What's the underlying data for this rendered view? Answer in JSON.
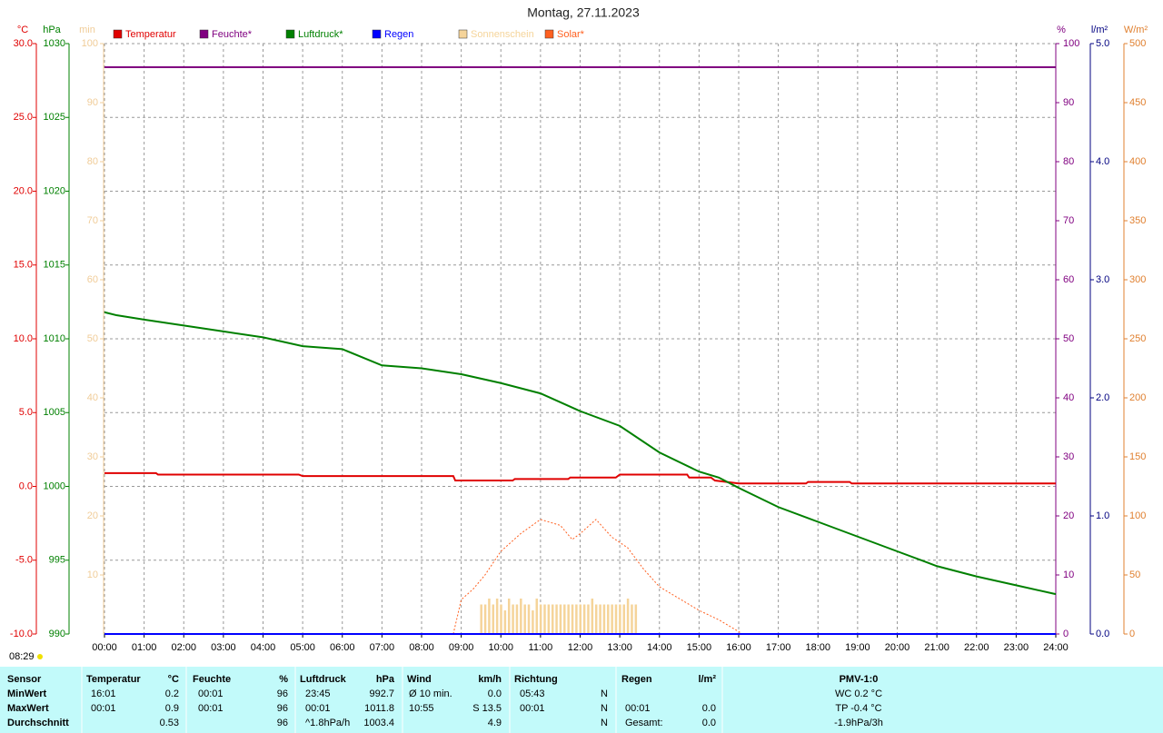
{
  "chart_data": {
    "type": "line",
    "title": "Montag, 27.11.2023",
    "xlim": [
      0,
      24
    ],
    "xticks": [
      {
        "value": 0,
        "label": "00:00"
      },
      {
        "value": 1,
        "label": "01:00"
      },
      {
        "value": 2,
        "label": "02:00"
      },
      {
        "value": 3,
        "label": "03:00"
      },
      {
        "value": 4,
        "label": "04:00"
      },
      {
        "value": 5,
        "label": "05:00"
      },
      {
        "value": 6,
        "label": "06:00"
      },
      {
        "value": 7,
        "label": "07:00"
      },
      {
        "value": 8,
        "label": "08:00"
      },
      {
        "value": 9,
        "label": "09:00"
      },
      {
        "value": 10,
        "label": "10:00"
      },
      {
        "value": 11,
        "label": "11:00"
      },
      {
        "value": 12,
        "label": "12:00"
      },
      {
        "value": 13,
        "label": "13:00"
      },
      {
        "value": 14,
        "label": "14:00"
      },
      {
        "value": 15,
        "label": "15:00"
      },
      {
        "value": 16,
        "label": "16:00"
      },
      {
        "value": 17,
        "label": "17:00"
      },
      {
        "value": 18,
        "label": "18:00"
      },
      {
        "value": 19,
        "label": "19:00"
      },
      {
        "value": 20,
        "label": "20:00"
      },
      {
        "value": 21,
        "label": "21:00"
      },
      {
        "value": 22,
        "label": "22:00"
      },
      {
        "value": 23,
        "label": "23:00"
      },
      {
        "value": 24,
        "label": "24:00"
      }
    ],
    "grid": true,
    "y_axes": {
      "y": {
        "unit": "°C",
        "side": "left",
        "color": "#e00000",
        "lim": [
          -10,
          30
        ],
        "ticks": [
          {
            "value": -10,
            "label": "-10.0"
          },
          {
            "value": -5,
            "label": "-5.0"
          },
          {
            "value": 0,
            "label": "0.0"
          },
          {
            "value": 5,
            "label": "5.0"
          },
          {
            "value": 10,
            "label": "10.0"
          },
          {
            "value": 15,
            "label": "15.0"
          },
          {
            "value": 20,
            "label": "20.0"
          },
          {
            "value": 25,
            "label": "25.0"
          },
          {
            "value": 30,
            "label": "30.0"
          }
        ]
      },
      "y2": {
        "unit": "hPa",
        "side": "left",
        "color": "#008000",
        "lim": [
          990,
          1030
        ],
        "ticks": [
          990,
          995,
          1000,
          1005,
          1010,
          1015,
          1020,
          1025,
          1030
        ]
      },
      "y3": {
        "unit": "min",
        "side": "left",
        "color": "#f0cc98",
        "lim": [
          0,
          100
        ],
        "ticks": [
          10,
          20,
          30,
          40,
          50,
          60,
          70,
          80,
          90,
          100
        ]
      },
      "y4": {
        "unit": "%",
        "side": "right",
        "color": "#800080",
        "lim": [
          0,
          100
        ],
        "ticks": [
          0,
          10,
          20,
          30,
          40,
          50,
          60,
          70,
          80,
          90,
          100
        ]
      },
      "y5": {
        "unit": "l/m²",
        "side": "right",
        "color": "#000080",
        "lim": [
          0,
          5
        ],
        "ticks": [
          {
            "value": 0,
            "label": "0.0"
          },
          {
            "value": 1,
            "label": "1.0"
          },
          {
            "value": 2,
            "label": "2.0"
          },
          {
            "value": 3,
            "label": "3.0"
          },
          {
            "value": 4,
            "label": "4.0"
          },
          {
            "value": 5,
            "label": "5.0"
          }
        ]
      },
      "y6": {
        "unit": "W/m²",
        "side": "right",
        "color": "#e08030",
        "lim": [
          0,
          500
        ],
        "ticks": [
          0,
          50,
          100,
          150,
          200,
          250,
          300,
          350,
          400,
          450,
          500
        ]
      }
    },
    "series": [
      {
        "name": "Temperatur",
        "color": "#e00000",
        "axis": "y",
        "type": "line",
        "x": [
          0,
          1.3,
          1.35,
          4.9,
          5.0,
          8.8,
          8.85,
          10.3,
          10.35,
          11.7,
          11.75,
          12.9,
          13.0,
          14.7,
          14.75,
          15.3,
          15.4,
          16.0,
          17.7,
          17.75,
          18.8,
          18.85,
          24
        ],
        "values": [
          0.9,
          0.9,
          0.8,
          0.8,
          0.7,
          0.7,
          0.4,
          0.4,
          0.5,
          0.5,
          0.6,
          0.6,
          0.8,
          0.8,
          0.6,
          0.6,
          0.4,
          0.2,
          0.2,
          0.3,
          0.3,
          0.2,
          0.2
        ]
      },
      {
        "name": "Feuchte*",
        "color": "#800080",
        "axis": "y4",
        "type": "line",
        "x": [
          0,
          24
        ],
        "values": [
          96,
          96
        ]
      },
      {
        "name": "Luftdruck*",
        "color": "#008000",
        "axis": "y2",
        "type": "line",
        "x": [
          0,
          0.3,
          1,
          2,
          3,
          4,
          5,
          6,
          7,
          8,
          9,
          10,
          11,
          12,
          13,
          14,
          15,
          15.5,
          16,
          17,
          18,
          19,
          20,
          21,
          22,
          23,
          24
        ],
        "values": [
          1011.8,
          1011.6,
          1011.3,
          1010.9,
          1010.5,
          1010.1,
          1009.5,
          1009.3,
          1008.2,
          1008.0,
          1007.6,
          1007.0,
          1006.3,
          1005.1,
          1004.1,
          1002.3,
          1001.0,
          1000.6,
          999.9,
          998.6,
          997.6,
          996.6,
          995.6,
          994.6,
          993.9,
          993.3,
          992.7
        ]
      },
      {
        "name": "Regen",
        "color": "#0000ff",
        "axis": "y5",
        "type": "line",
        "x": [
          0,
          24
        ],
        "values": [
          0,
          0
        ]
      },
      {
        "name": "Sonnenschein",
        "color": "#f5d49a",
        "axis": "y3",
        "type": "bar",
        "x": [
          9.5,
          9.6,
          9.7,
          9.8,
          9.9,
          10.0,
          10.1,
          10.2,
          10.3,
          10.4,
          10.5,
          10.6,
          10.7,
          10.8,
          10.9,
          11.0,
          11.1,
          11.2,
          11.3,
          11.4,
          11.5,
          11.6,
          11.7,
          11.8,
          11.9,
          12.0,
          12.1,
          12.2,
          12.3,
          12.4,
          12.5,
          12.6,
          12.7,
          12.8,
          12.9,
          13.0,
          13.1,
          13.2,
          13.3,
          13.4
        ],
        "values": [
          5,
          5,
          6,
          5,
          6,
          5,
          4,
          6,
          5,
          5,
          6,
          5,
          5,
          4,
          6,
          5,
          5,
          5,
          5,
          5,
          5,
          5,
          5,
          5,
          5,
          5,
          5,
          5,
          6,
          5,
          5,
          5,
          5,
          5,
          5,
          5,
          5,
          6,
          5,
          5
        ]
      },
      {
        "name": "Solar*",
        "color": "#ff6020",
        "axis": "y6",
        "type": "line",
        "line_style": "dotted",
        "x": [
          8.8,
          9.0,
          9.3,
          9.6,
          10.0,
          10.5,
          11.0,
          11.5,
          11.8,
          12.0,
          12.4,
          12.8,
          13.2,
          13.6,
          14.0,
          15.0,
          15.5,
          16.1
        ],
        "values": [
          0,
          29,
          38,
          50,
          70,
          85,
          97,
          92,
          80,
          85,
          97,
          82,
          73,
          55,
          40,
          20,
          12,
          0
        ]
      }
    ],
    "sunrise_label": "08:29",
    "table": {
      "rows": [
        [
          "Sensor",
          "Temperatur",
          "°C",
          "Feuchte",
          "%",
          "Luftdruck",
          "hPa",
          "Wind",
          "km/h",
          "Richtung",
          null,
          "Regen",
          "l/m²",
          "PMV-1:0"
        ],
        [
          "MinWert",
          "16:01",
          "0.2",
          "00:01",
          "96",
          "23:45",
          "992.7",
          "Ø 10 min.",
          "0.0",
          "05:43",
          "N",
          null,
          null,
          "WC 0.2 °C"
        ],
        [
          "MaxWert",
          "00:01",
          "0.9",
          "00:01",
          "96",
          "00:01",
          "1011.8",
          "10:55",
          "S 13.5",
          "00:01",
          "N",
          "00:01",
          "0.0",
          "TP -0.4 °C"
        ],
        [
          "Durchschnitt",
          null,
          "0.53",
          null,
          "96",
          "^1.8hPa/h",
          "1003.4",
          null,
          "4.9",
          null,
          "N",
          "Gesamt:",
          "0.0",
          "-1.9hPa/3h"
        ]
      ]
    }
  }
}
